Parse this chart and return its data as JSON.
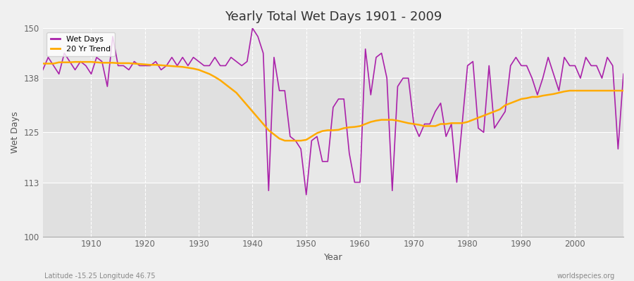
{
  "title": "Yearly Total Wet Days 1901 - 2009",
  "xlabel": "Year",
  "ylabel": "Wet Days",
  "xlim": [
    1901,
    2009
  ],
  "ylim": [
    100,
    150
  ],
  "yticks": [
    100,
    113,
    125,
    138,
    150
  ],
  "xticks": [
    1910,
    1920,
    1930,
    1940,
    1950,
    1960,
    1970,
    1980,
    1990,
    2000
  ],
  "bg_color": "#e8e8e8",
  "bg_light": "#eeeeee",
  "bg_dark": "#dddddd",
  "fig_color": "#f0f0f0",
  "wet_days_color": "#aa22aa",
  "trend_color": "#ffaa00",
  "footer_left": "Latitude -15.25 Longitude 46.75",
  "footer_right": "worldspecies.org",
  "wet_days": {
    "1901": 140,
    "1902": 143,
    "1903": 141,
    "1904": 139,
    "1905": 144,
    "1906": 142,
    "1907": 140,
    "1908": 142,
    "1909": 141,
    "1910": 139,
    "1911": 143,
    "1912": 142,
    "1913": 136,
    "1914": 148,
    "1915": 141,
    "1916": 141,
    "1917": 140,
    "1918": 142,
    "1919": 141,
    "1920": 141,
    "1921": 141,
    "1922": 142,
    "1923": 140,
    "1924": 141,
    "1925": 143,
    "1926": 141,
    "1927": 143,
    "1928": 141,
    "1929": 143,
    "1930": 142,
    "1931": 141,
    "1932": 141,
    "1933": 143,
    "1934": 141,
    "1935": 141,
    "1936": 143,
    "1937": 142,
    "1938": 141,
    "1939": 142,
    "1940": 150,
    "1941": 148,
    "1942": 144,
    "1943": 111,
    "1944": 143,
    "1945": 135,
    "1946": 135,
    "1947": 124,
    "1948": 123,
    "1949": 121,
    "1950": 110,
    "1951": 123,
    "1952": 124,
    "1953": 118,
    "1954": 118,
    "1955": 131,
    "1956": 133,
    "1957": 133,
    "1958": 120,
    "1959": 113,
    "1960": 113,
    "1961": 145,
    "1962": 134,
    "1963": 143,
    "1964": 144,
    "1965": 138,
    "1966": 111,
    "1967": 136,
    "1968": 138,
    "1969": 138,
    "1970": 127,
    "1971": 124,
    "1972": 127,
    "1973": 127,
    "1974": 130,
    "1975": 132,
    "1976": 124,
    "1977": 127,
    "1978": 113,
    "1979": 127,
    "1980": 141,
    "1981": 142,
    "1982": 126,
    "1983": 125,
    "1984": 141,
    "1985": 126,
    "1986": 128,
    "1987": 130,
    "1988": 141,
    "1989": 143,
    "1990": 141,
    "1991": 141,
    "1992": 138,
    "1993": 134,
    "1994": 138,
    "1995": 143,
    "1996": 139,
    "1997": 135,
    "1998": 143,
    "1999": 141,
    "2000": 141,
    "2001": 138,
    "2002": 143,
    "2003": 141,
    "2004": 141,
    "2005": 138,
    "2006": 143,
    "2007": 141,
    "2008": 121,
    "2009": 139
  },
  "trend": {
    "1901": 141.5,
    "1902": 141.5,
    "1903": 141.5,
    "1904": 141.8,
    "1905": 141.8,
    "1906": 141.8,
    "1907": 141.9,
    "1908": 141.9,
    "1909": 141.9,
    "1910": 141.9,
    "1911": 141.8,
    "1912": 141.7,
    "1913": 141.7,
    "1914": 141.7,
    "1915": 141.6,
    "1916": 141.6,
    "1917": 141.6,
    "1918": 141.5,
    "1919": 141.4,
    "1920": 141.3,
    "1921": 141.2,
    "1922": 141.2,
    "1923": 141.1,
    "1924": 141.0,
    "1925": 140.9,
    "1926": 140.8,
    "1927": 140.7,
    "1928": 140.5,
    "1929": 140.3,
    "1930": 140.0,
    "1931": 139.5,
    "1932": 139.0,
    "1933": 138.3,
    "1934": 137.5,
    "1935": 136.5,
    "1936": 135.5,
    "1937": 134.5,
    "1938": 133.0,
    "1939": 131.5,
    "1940": 130.0,
    "1941": 128.5,
    "1942": 127.0,
    "1943": 125.5,
    "1944": 124.5,
    "1945": 123.5,
    "1946": 123.0,
    "1947": 123.0,
    "1948": 123.0,
    "1949": 123.0,
    "1950": 123.2,
    "1951": 124.0,
    "1952": 124.8,
    "1953": 125.3,
    "1954": 125.5,
    "1955": 125.5,
    "1956": 125.6,
    "1957": 126.0,
    "1958": 126.2,
    "1959": 126.3,
    "1960": 126.5,
    "1961": 127.0,
    "1962": 127.5,
    "1963": 127.8,
    "1964": 128.0,
    "1965": 128.0,
    "1966": 128.0,
    "1967": 127.8,
    "1968": 127.5,
    "1969": 127.2,
    "1970": 127.0,
    "1971": 126.8,
    "1972": 126.5,
    "1973": 126.5,
    "1974": 126.5,
    "1975": 127.0,
    "1976": 127.0,
    "1977": 127.2,
    "1978": 127.2,
    "1979": 127.2,
    "1980": 127.5,
    "1981": 128.0,
    "1982": 128.5,
    "1983": 129.0,
    "1984": 129.5,
    "1985": 130.0,
    "1986": 130.5,
    "1987": 131.5,
    "1988": 132.0,
    "1989": 132.5,
    "1990": 133.0,
    "1991": 133.2,
    "1992": 133.5,
    "1993": 133.5,
    "1994": 133.8,
    "1995": 134.0,
    "1996": 134.2,
    "1997": 134.5,
    "1998": 134.8,
    "1999": 135.0,
    "2000": 135.0,
    "2001": 135.0,
    "2002": 135.0,
    "2003": 135.0,
    "2004": 135.0,
    "2005": 135.0,
    "2006": 135.0,
    "2007": 135.0,
    "2008": 135.0,
    "2009": 135.0
  }
}
